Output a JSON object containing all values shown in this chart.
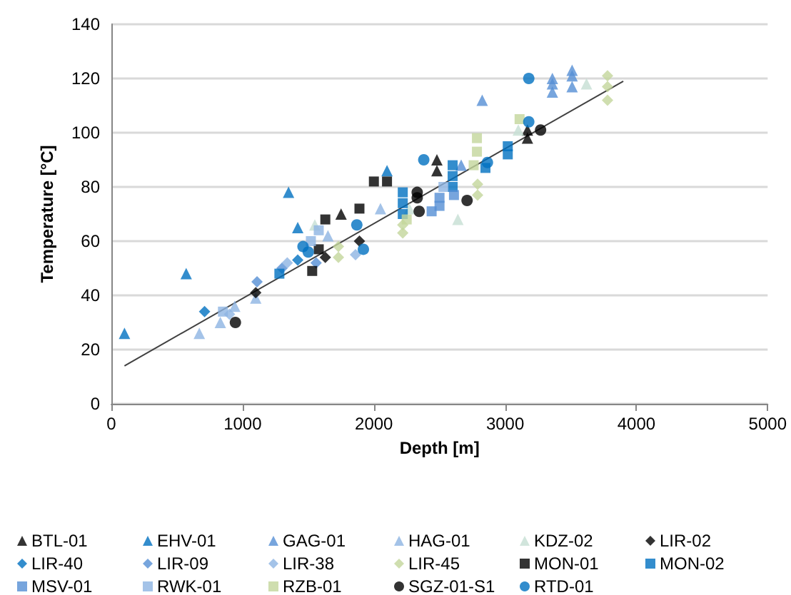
{
  "chart_data": {
    "type": "scatter",
    "xlabel": "Depth [m]",
    "ylabel": "Temperature [°C]",
    "xlim": [
      0,
      5000
    ],
    "xticks": [
      0,
      1000,
      2000,
      3000,
      4000,
      5000
    ],
    "ylim": [
      0,
      140
    ],
    "yticks": [
      0,
      20,
      40,
      60,
      80,
      100,
      120,
      140
    ],
    "grid": "y",
    "legend": "bottom",
    "series": [
      {
        "name": "BTL-01",
        "color": "#000000",
        "marker": "triangle",
        "x": [
          1750,
          2480,
          2480,
          3170,
          3170
        ],
        "values": [
          70,
          90,
          86,
          98,
          101
        ]
      },
      {
        "name": "EHV-01",
        "color": "#0070c0",
        "marker": "triangle",
        "x": [
          100,
          570,
          1350,
          1420,
          2100
        ],
        "values": [
          26,
          48,
          78,
          65,
          86
        ]
      },
      {
        "name": "GAG-01",
        "color": "#558ed5",
        "marker": "triangle",
        "x": [
          2665,
          2825,
          3360,
          3360,
          3360,
          3510,
          3510,
          3510
        ],
        "values": [
          88,
          112,
          115,
          118,
          120,
          117,
          121,
          123
        ]
      },
      {
        "name": "HAG-01",
        "color": "#8db4e2",
        "marker": "triangle",
        "x": [
          670,
          830,
          940,
          1100,
          1650,
          2050
        ],
        "values": [
          26,
          30,
          36,
          39,
          62,
          72
        ]
      },
      {
        "name": "KDZ-02",
        "color": "#c6dfd3",
        "marker": "triangle",
        "x": [
          1550,
          2270,
          2640,
          3100,
          3620
        ],
        "values": [
          66,
          72,
          68,
          101,
          118
        ]
      },
      {
        "name": "LIR-02",
        "color": "#000000",
        "marker": "diamond",
        "x": [
          1100,
          1630,
          1890
        ],
        "values": [
          41,
          54,
          60
        ]
      },
      {
        "name": "LIR-40",
        "color": "#0070c0",
        "marker": "diamond",
        "x": [
          710,
          1420
        ],
        "values": [
          34,
          53
        ]
      },
      {
        "name": "LIR-09",
        "color": "#558ed5",
        "marker": "diamond",
        "x": [
          1110,
          1300,
          1560
        ],
        "values": [
          45,
          50,
          52
        ]
      },
      {
        "name": "LIR-38",
        "color": "#8db4e2",
        "marker": "diamond",
        "x": [
          900,
          1340,
          1860
        ],
        "values": [
          33,
          52,
          55
        ]
      },
      {
        "name": "LIR-45",
        "color": "#c3d69b",
        "marker": "diamond",
        "x": [
          1730,
          1730,
          2220,
          2220,
          2790,
          2790,
          3780,
          3780,
          3780
        ],
        "values": [
          54,
          58,
          63,
          66,
          77,
          81,
          112,
          117,
          121
        ]
      },
      {
        "name": "MON-01",
        "color": "#000000",
        "marker": "square",
        "x": [
          1530,
          1580,
          1630,
          1890,
          2000,
          2100
        ],
        "values": [
          49,
          57,
          68,
          72,
          82,
          82
        ]
      },
      {
        "name": "MON-02",
        "color": "#0070c0",
        "marker": "square",
        "x": [
          1280,
          2220,
          2220,
          2220,
          2600,
          2600,
          2600,
          2850,
          3020,
          3020
        ],
        "values": [
          48,
          70,
          74,
          78,
          80,
          84,
          88,
          87,
          92,
          95
        ]
      },
      {
        "name": "MSV-01",
        "color": "#558ed5",
        "marker": "square",
        "x": [
          2440,
          2500,
          2500,
          2610
        ],
        "values": [
          71,
          73,
          76,
          77
        ]
      },
      {
        "name": "RWK-01",
        "color": "#8db4e2",
        "marker": "square",
        "x": [
          850,
          1520,
          1580,
          2530
        ],
        "values": [
          34,
          60,
          64,
          80
        ]
      },
      {
        "name": "RZB-01",
        "color": "#c3d69b",
        "marker": "square",
        "x": [
          2250,
          2760,
          2785,
          2785,
          3110
        ],
        "values": [
          68,
          88,
          93,
          98,
          105
        ]
      },
      {
        "name": "SGZ-01-S1",
        "color": "#000000",
        "marker": "circle",
        "x": [
          945,
          2330,
          2330,
          2345,
          2710,
          3270
        ],
        "values": [
          30,
          76,
          78,
          71,
          75,
          101
        ]
      },
      {
        "name": "RTD-01",
        "color": "#0070c0",
        "marker": "circle",
        "x": [
          1460,
          1500,
          1870,
          1920,
          2380,
          2865,
          3180,
          3180
        ],
        "values": [
          58,
          56,
          66,
          57,
          90,
          89,
          104,
          120
        ]
      },
      {
        "type": "line",
        "color": "#404040",
        "marker": "none",
        "line_style": "solid",
        "x": [
          100,
          3900
        ],
        "values": [
          14,
          119
        ]
      }
    ]
  }
}
